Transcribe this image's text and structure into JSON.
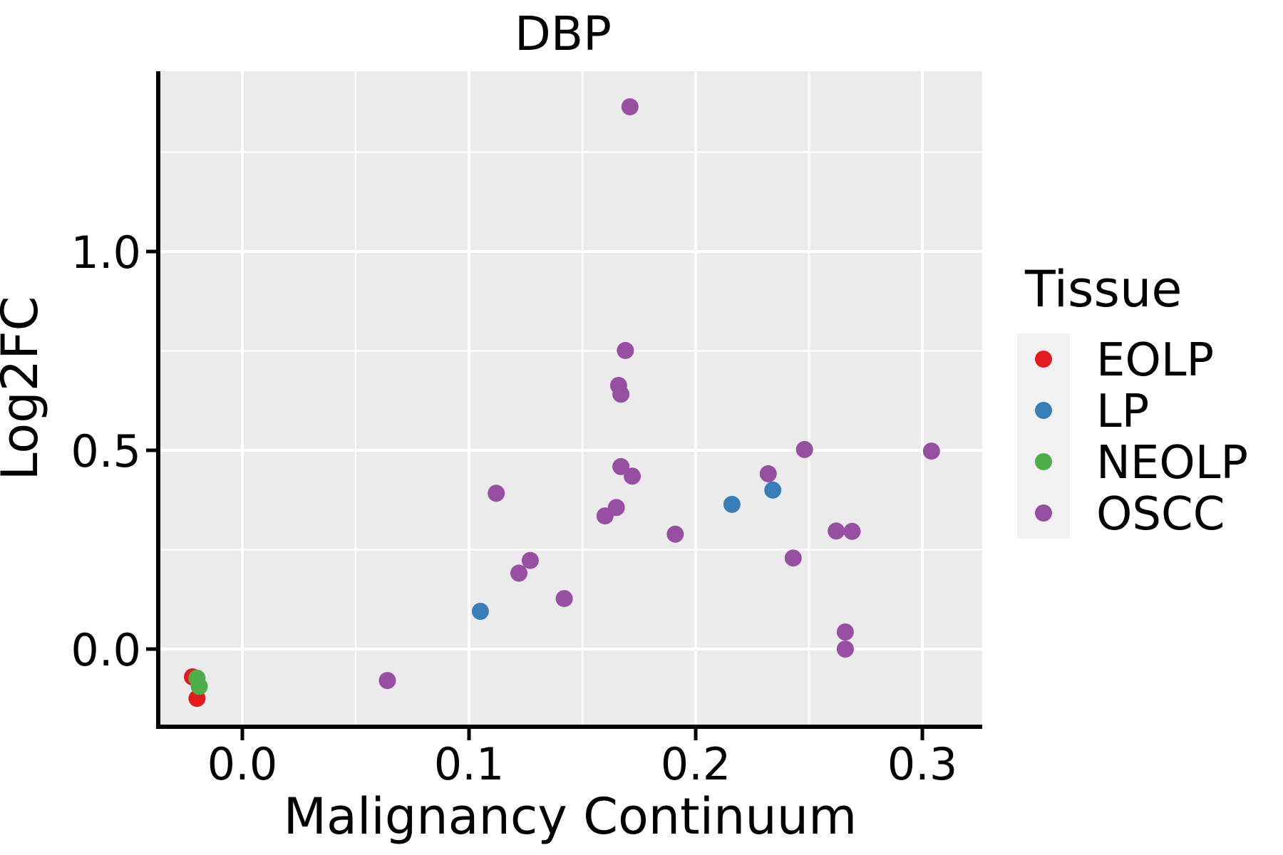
{
  "chart_data": {
    "type": "scatter",
    "title": "DBP",
    "xlabel": "Malignancy Continuum",
    "ylabel": "Log2FC",
    "xlim": [
      -0.0371,
      0.3264
    ],
    "ylim": [
      -0.19,
      1.4534
    ],
    "x_ticks": [
      0.0,
      0.1,
      0.2,
      0.3
    ],
    "y_ticks": [
      0.0,
      0.5,
      1.0
    ],
    "x_minor_ticks": [
      0.05,
      0.15,
      0.25
    ],
    "y_minor_ticks": [
      0.25,
      0.75,
      1.25
    ],
    "grid": true,
    "panel_background": "#EBEBEB",
    "grid_color": "#FFFFFF",
    "legend_key_background": "#F2F2F2",
    "legend_position": "right",
    "legend_title": "Tissue",
    "series": [
      {
        "name": "EOLP",
        "color": "#E41A1C",
        "points": [
          [
            -0.022,
            -0.07
          ],
          [
            -0.02,
            -0.124
          ]
        ]
      },
      {
        "name": "LP",
        "color": "#377EB8",
        "points": [
          [
            0.105,
            0.095
          ],
          [
            0.216,
            0.364
          ],
          [
            0.234,
            0.4
          ]
        ]
      },
      {
        "name": "NEOLP",
        "color": "#4DAF4A",
        "points": [
          [
            -0.02,
            -0.073
          ],
          [
            -0.019,
            -0.094
          ]
        ]
      },
      {
        "name": "OSCC",
        "color": "#984EA3",
        "points": [
          [
            0.064,
            -0.079
          ],
          [
            0.112,
            0.392
          ],
          [
            0.122,
            0.191
          ],
          [
            0.127,
            0.223
          ],
          [
            0.142,
            0.127
          ],
          [
            0.16,
            0.335
          ],
          [
            0.165,
            0.356
          ],
          [
            0.167,
            0.459
          ],
          [
            0.172,
            0.435
          ],
          [
            0.171,
            1.364
          ],
          [
            0.169,
            0.751
          ],
          [
            0.166,
            0.663
          ],
          [
            0.167,
            0.641
          ],
          [
            0.191,
            0.289
          ],
          [
            0.232,
            0.441
          ],
          [
            0.243,
            0.229
          ],
          [
            0.248,
            0.502
          ],
          [
            0.262,
            0.297
          ],
          [
            0.269,
            0.296
          ],
          [
            0.266,
            0.043
          ],
          [
            0.266,
            0.0
          ],
          [
            0.304,
            0.498
          ]
        ]
      }
    ]
  }
}
